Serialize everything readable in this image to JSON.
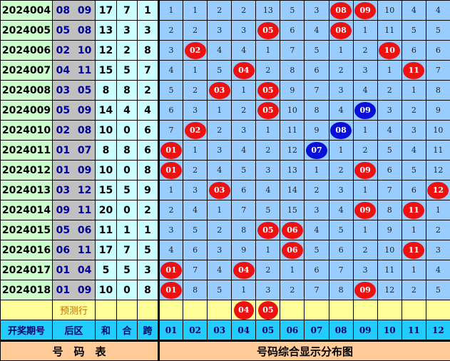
{
  "colors": {
    "red_ball": "#ee1111",
    "blue_ball": "#0a10d8",
    "grid": "#99ccff",
    "header": "#22ccff",
    "footer": "#ffcc99",
    "prediction": "#ffff99"
  },
  "rows": [
    {
      "period": "2024004",
      "back": "08 09",
      "sum": "17",
      "he": "7",
      "span": "1",
      "cells": [
        "1",
        "1",
        "2",
        "2",
        "13",
        "5",
        "3",
        {
          "ball": "08",
          "color": "red"
        },
        {
          "ball": "09",
          "color": "red"
        },
        "10",
        "4",
        "4"
      ]
    },
    {
      "period": "2024005",
      "back": "05 08",
      "sum": "13",
      "he": "3",
      "span": "3",
      "cells": [
        "2",
        "2",
        "3",
        "3",
        {
          "ball": "05",
          "color": "red"
        },
        "6",
        "4",
        {
          "ball": "08",
          "color": "red"
        },
        "1",
        "11",
        "5",
        "5"
      ]
    },
    {
      "period": "2024006",
      "back": "02 10",
      "sum": "12",
      "he": "2",
      "span": "8",
      "cells": [
        "3",
        {
          "ball": "02",
          "color": "red"
        },
        "4",
        "4",
        "1",
        "7",
        "5",
        "1",
        "2",
        {
          "ball": "10",
          "color": "red"
        },
        "6",
        "6"
      ]
    },
    {
      "period": "2024007",
      "back": "04 11",
      "sum": "15",
      "he": "5",
      "span": "7",
      "cells": [
        "4",
        "1",
        "5",
        {
          "ball": "04",
          "color": "red"
        },
        "2",
        "8",
        "6",
        "2",
        "3",
        "1",
        {
          "ball": "11",
          "color": "red"
        },
        "7"
      ]
    },
    {
      "period": "2024008",
      "back": "03 05",
      "sum": "8",
      "he": "8",
      "span": "2",
      "cells": [
        "5",
        "2",
        {
          "ball": "03",
          "color": "red"
        },
        "1",
        {
          "ball": "05",
          "color": "red"
        },
        "9",
        "7",
        "3",
        "4",
        "2",
        "1",
        "8"
      ]
    },
    {
      "period": "2024009",
      "back": "05 09",
      "sum": "14",
      "he": "4",
      "span": "4",
      "cells": [
        "6",
        "3",
        "1",
        "2",
        {
          "ball": "05",
          "color": "red"
        },
        "10",
        "8",
        "4",
        {
          "ball": "09",
          "color": "blue"
        },
        "3",
        "2",
        "9"
      ]
    },
    {
      "period": "2024010",
      "back": "02 08",
      "sum": "10",
      "he": "0",
      "span": "6",
      "cells": [
        "7",
        {
          "ball": "02",
          "color": "red"
        },
        "2",
        "3",
        "1",
        "11",
        "9",
        {
          "ball": "08",
          "color": "blue"
        },
        "1",
        "4",
        "3",
        "10"
      ]
    },
    {
      "period": "2024011",
      "back": "01 07",
      "sum": "8",
      "he": "8",
      "span": "6",
      "cells": [
        {
          "ball": "01",
          "color": "red"
        },
        "1",
        "3",
        "4",
        "2",
        "12",
        {
          "ball": "07",
          "color": "blue"
        },
        "1",
        "2",
        "5",
        "4",
        "11"
      ]
    },
    {
      "period": "2024012",
      "back": "01 09",
      "sum": "10",
      "he": "0",
      "span": "8",
      "cells": [
        {
          "ball": "01",
          "color": "red"
        },
        "2",
        "4",
        "5",
        "3",
        "13",
        "1",
        "2",
        {
          "ball": "09",
          "color": "red"
        },
        "6",
        "5",
        "12"
      ]
    },
    {
      "period": "2024013",
      "back": "03 12",
      "sum": "15",
      "he": "5",
      "span": "9",
      "cells": [
        "1",
        "3",
        {
          "ball": "03",
          "color": "red"
        },
        "6",
        "4",
        "14",
        "2",
        "3",
        "1",
        "7",
        "6",
        {
          "ball": "12",
          "color": "red"
        }
      ]
    },
    {
      "period": "2024014",
      "back": "09 11",
      "sum": "20",
      "he": "0",
      "span": "2",
      "cells": [
        "2",
        "4",
        "1",
        "7",
        "5",
        "15",
        "3",
        "4",
        {
          "ball": "09",
          "color": "red"
        },
        "8",
        {
          "ball": "11",
          "color": "red"
        },
        "1"
      ]
    },
    {
      "period": "2024015",
      "back": "05 06",
      "sum": "11",
      "he": "1",
      "span": "1",
      "cells": [
        "3",
        "5",
        "2",
        "8",
        {
          "ball": "05",
          "color": "red"
        },
        {
          "ball": "06",
          "color": "red"
        },
        "4",
        "5",
        "1",
        "9",
        "1",
        "2"
      ]
    },
    {
      "period": "2024016",
      "back": "06 11",
      "sum": "17",
      "he": "7",
      "span": "5",
      "cells": [
        "4",
        "6",
        "3",
        "9",
        "1",
        {
          "ball": "06",
          "color": "red"
        },
        "5",
        "6",
        "2",
        "10",
        {
          "ball": "11",
          "color": "red"
        },
        "3"
      ]
    },
    {
      "period": "2024017",
      "back": "01 04",
      "sum": "5",
      "he": "5",
      "span": "3",
      "cells": [
        {
          "ball": "01",
          "color": "red"
        },
        "7",
        "4",
        {
          "ball": "04",
          "color": "red"
        },
        "2",
        "1",
        "6",
        "7",
        "3",
        "11",
        "1",
        "4"
      ]
    },
    {
      "period": "2024018",
      "back": "01 09",
      "sum": "10",
      "he": "0",
      "span": "8",
      "cells": [
        {
          "ball": "01",
          "color": "red"
        },
        "8",
        "5",
        "1",
        "3",
        "2",
        "7",
        "8",
        {
          "ball": "09",
          "color": "red"
        },
        "12",
        "2",
        "5"
      ]
    }
  ],
  "prediction": {
    "label": "预测行",
    "balls": [
      "04",
      "05"
    ]
  },
  "header": {
    "period": "开奖期号",
    "back": "后区",
    "sum": "和",
    "he": "合",
    "span": "跨",
    "numbers": [
      "01",
      "02",
      "03",
      "04",
      "05",
      "06",
      "07",
      "08",
      "09",
      "10",
      "11",
      "12"
    ]
  },
  "footer": {
    "left": "号　码　表",
    "right": "号码综合显示分布图"
  }
}
